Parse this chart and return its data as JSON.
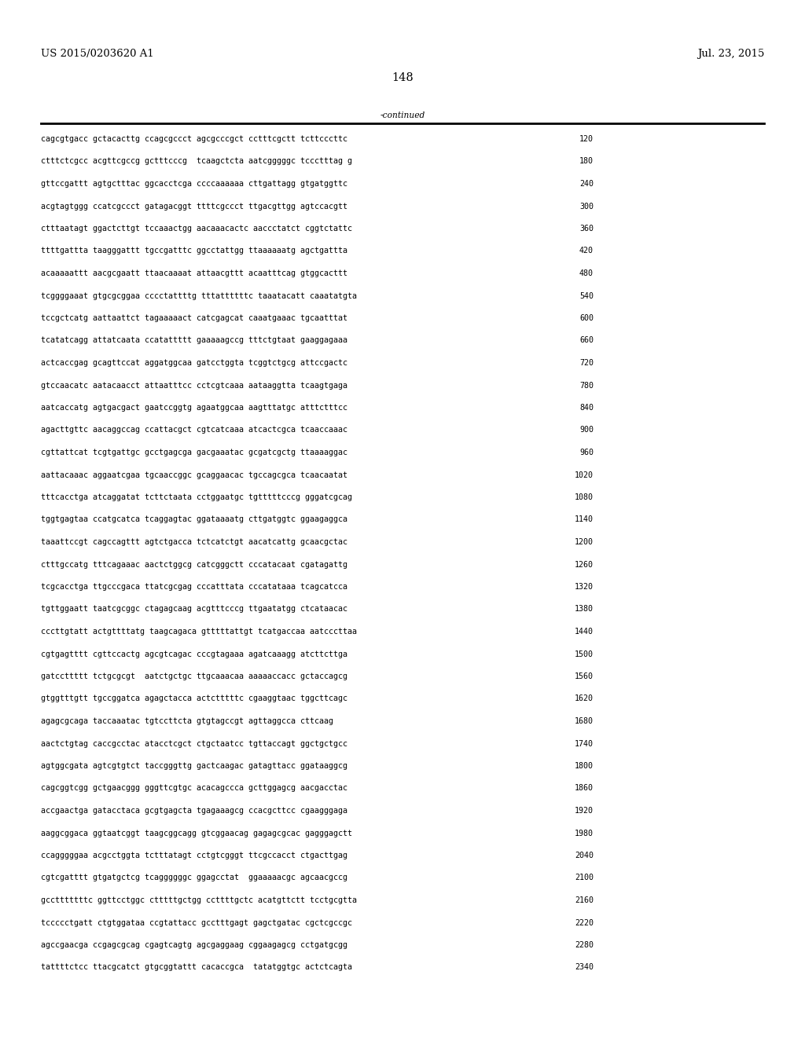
{
  "header_left": "US 2015/0203620 A1",
  "header_right": "Jul. 23, 2015",
  "page_number": "148",
  "continued_label": "-continued",
  "background_color": "#ffffff",
  "text_color": "#000000",
  "font_size_header": 9.5,
  "font_size_body": 7.2,
  "font_size_page": 10.5,
  "sequence_lines": [
    [
      "cagcgtgacc gctacacttg ccagcgccct agcgcccgct cctttcgctt tcttcccttc",
      "120"
    ],
    [
      "ctttctcgcc acgttcgccg gctttcccg  tcaagctcta aatcgggggc tccctttag g",
      "180"
    ],
    [
      "gttccgattt agtgctttac ggcacctcga ccccaaaaaa cttgattagg gtgatggttc",
      "240"
    ],
    [
      "acgtagtggg ccatcgccct gatagacggt ttttcgccct ttgacgttgg agtccacgtt",
      "300"
    ],
    [
      "ctttaatagt ggactcttgt tccaaactgg aacaaacactc aaccctatct cggtctattc",
      "360"
    ],
    [
      "ttttgattta taagggattt tgccgatttc ggcctattgg ttaaaaaatg agctgattta",
      "420"
    ],
    [
      "acaaaaattt aacgcgaatt ttaacaaaat attaacgttt acaatttcag gtggcacttt",
      "480"
    ],
    [
      "tcggggaaat gtgcgcggaa cccctattttg tttattttttc taaatacatt caaatatgta",
      "540"
    ],
    [
      "tccgctcatg aattaattct tagaaaaact catcgagcat caaatgaaac tgcaatttat",
      "600"
    ],
    [
      "tcatatcagg attatcaata ccatattttt gaaaaagccg tttctgtaat gaaggagaaa",
      "660"
    ],
    [
      "actcaccgag gcagttccat aggatggcaa gatcctggta tcggtctgcg attccgactc",
      "720"
    ],
    [
      "gtccaacatc aatacaacct attaatttcc cctcgtcaaa aataaggtta tcaagtgaga",
      "780"
    ],
    [
      "aatcaccatg agtgacgact gaatccggtg agaatggcaa aagtttatgc atttctttcc",
      "840"
    ],
    [
      "agacttgttc aacaggccag ccattacgct cgtcatcaaa atcactcgca tcaaccaaac",
      "900"
    ],
    [
      "cgttattcat tcgtgattgc gcctgagcga gacgaaatac gcgatcgctg ttaaaaggac",
      "960"
    ],
    [
      "aattacaaac aggaatcgaa tgcaaccggc gcaggaacac tgccagcgca tcaacaatat",
      "1020"
    ],
    [
      "tttcacctga atcaggatat tcttctaata cctggaatgc tgtttttcccg gggatcgcag",
      "1080"
    ],
    [
      "tggtgagtaa ccatgcatca tcaggagtac ggataaaatg cttgatggtc ggaagaggca",
      "1140"
    ],
    [
      "taaattccgt cagccagttt agtctgacca tctcatctgt aacatcattg gcaacgctac",
      "1200"
    ],
    [
      "ctttgccatg tttcagaaac aactctggcg catcgggctt cccatacaat cgatagattg",
      "1260"
    ],
    [
      "tcgcacctga ttgcccgaca ttatcgcgag cccatttata cccatataaa tcagcatcca",
      "1320"
    ],
    [
      "tgttggaatt taatcgcggc ctagagcaag acgtttcccg ttgaatatgg ctcataacac",
      "1380"
    ],
    [
      "cccttgtatt actgttttatg taagcagaca gtttttattgt tcatgaccaa aatcccttaa",
      "1440"
    ],
    [
      "cgtgagtttt cgttccactg agcgtcagac cccgtagaaa agatcaaagg atcttcttga",
      "1500"
    ],
    [
      "gatccttttt tctgcgcgt  aatctgctgc ttgcaaacaa aaaaaccacc gctaccagcg",
      "1560"
    ],
    [
      "gtggtttgtt tgccggatca agagctacca actctttttc cgaaggtaac tggcttcagc",
      "1620"
    ],
    [
      "agagcgcaga taccaaatac tgtccttcta gtgtagccgt agttaggcca cttcaag",
      "1680"
    ],
    [
      "aactctgtag caccgcctac atacctcgct ctgctaatcc tgttaccagt ggctgctgcc",
      "1740"
    ],
    [
      "agtggcgata agtcgtgtct taccgggttg gactcaagac gatagttacc ggataaggcg",
      "1800"
    ],
    [
      "cagcggtcgg gctgaacggg gggttcgtgc acacagccca gcttggagcg aacgacctac",
      "1860"
    ],
    [
      "accgaactga gatacctaca gcgtgagcta tgagaaagcg ccacgcttcc cgaagggaga",
      "1920"
    ],
    [
      "aaggcggaca ggtaatcggt taagcggcagg gtcggaacag gagagcgcac gagggagctt",
      "1980"
    ],
    [
      "ccagggggaa acgcctggta tctttatagt cctgtcgggt ttcgccacct ctgacttgag",
      "2040"
    ],
    [
      "cgtcgatttt gtgatgctcg tcaggggggc ggagcctat  ggaaaaacgc agcaacgccg",
      "2100"
    ],
    [
      "gcctttttttc ggttcctggc ctttttgctgg ccttttgctc acatgttctt tcctgcgtta",
      "2160"
    ],
    [
      "tccccctgatt ctgtggataa ccgtattacc gcctttgagt gagctgatac cgctcgccgc",
      "2220"
    ],
    [
      "agccgaacga ccgagcgcag cgagtcagtg agcgaggaag cggaagagcg cctgatgcgg",
      "2280"
    ],
    [
      "tattttctcc ttacgcatct gtgcggtattt cacaccgca  tatatggtgc actctcagta",
      "2340"
    ]
  ]
}
